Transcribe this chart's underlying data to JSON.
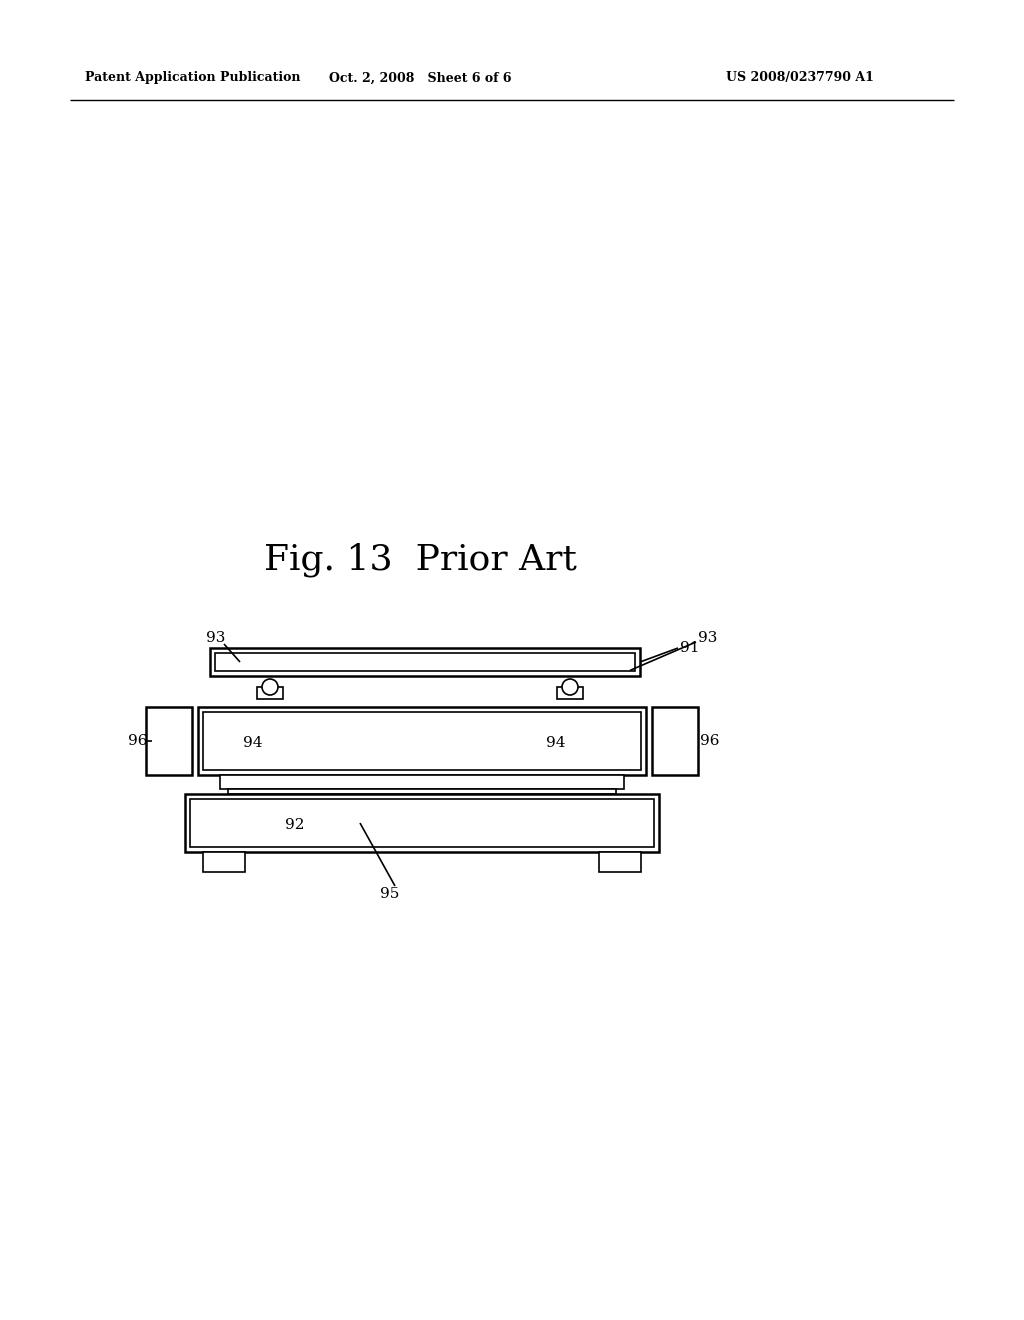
{
  "bg_color": "#ffffff",
  "line_color": "#000000",
  "header_left": "Patent Application Publication",
  "header_mid": "Oct. 2, 2008   Sheet 6 of 6",
  "header_right": "US 2008/0237790 A1",
  "fig_label": "Fig. 13  Prior Art",
  "lw_thin": 1.2,
  "lw_med": 1.8,
  "lw_thick": 2.2,
  "font_size_label": 11,
  "font_size_fig": 26,
  "font_size_header": 9
}
